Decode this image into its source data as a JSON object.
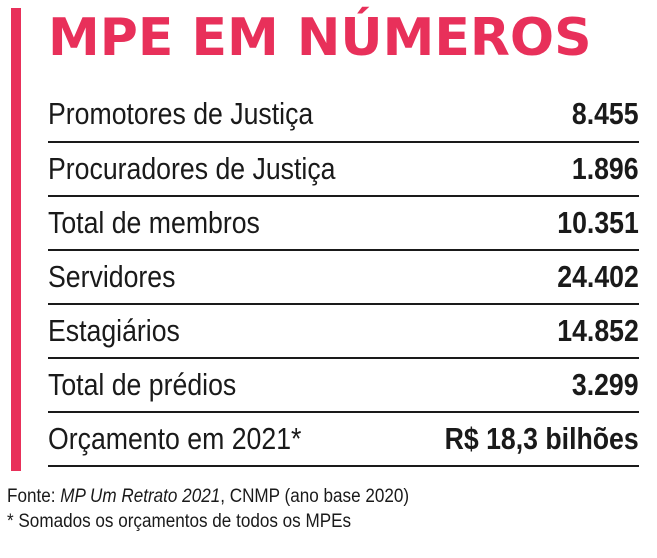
{
  "colors": {
    "accent": "#e8305a",
    "text": "#1a1a1a"
  },
  "title": "MPE EM NÚMEROS",
  "rows": [
    {
      "label": "Promotores de Justiça",
      "value": "8.455"
    },
    {
      "label": "Procuradores de Justiça",
      "value": "1.896"
    },
    {
      "label": "Total de membros",
      "value": "10.351"
    },
    {
      "label": "Servidores",
      "value": "24.402"
    },
    {
      "label": "Estagiários",
      "value": "14.852"
    },
    {
      "label": "Total de prédios",
      "value": "3.299"
    },
    {
      "label": "Orçamento em 2021*",
      "value": "R$ 18,3 bilhões"
    }
  ],
  "footer": {
    "source_prefix": "Fonte: ",
    "source_title": "MP Um Retrato 2021",
    "source_suffix": ", CNMP (ano base 2020)",
    "footnote": "* Somados os orçamentos de todos os MPEs"
  }
}
